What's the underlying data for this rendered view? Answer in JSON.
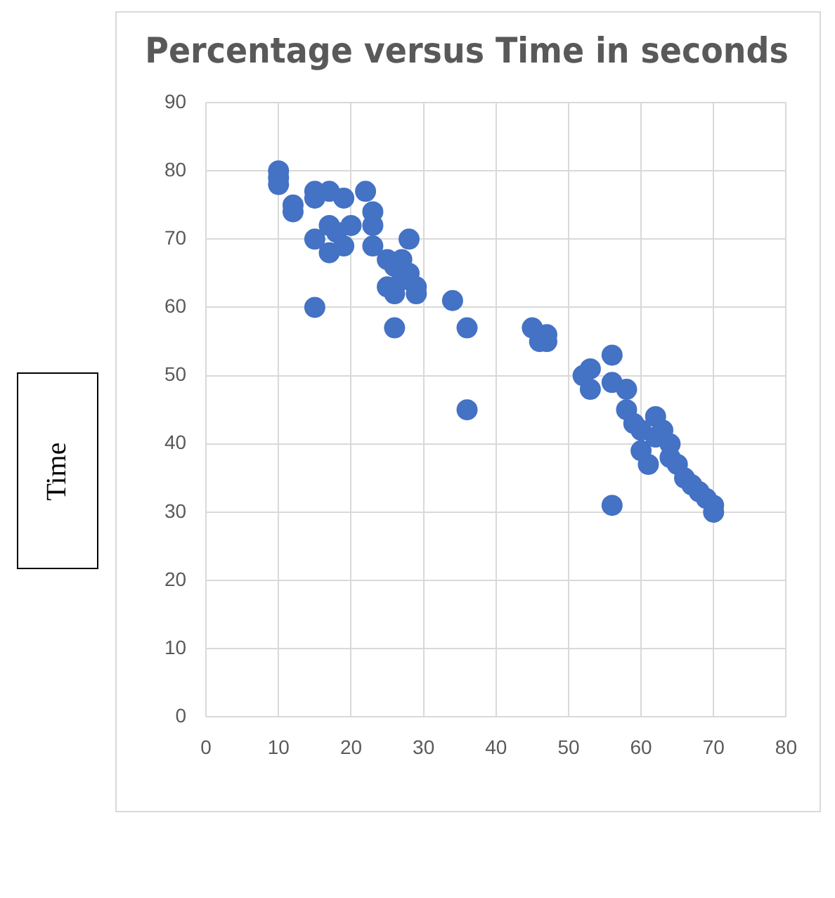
{
  "chart_data": {
    "type": "scatter",
    "title": "Percentage versus Time in seconds",
    "ylabel": "Time",
    "x": [
      10,
      10,
      10,
      12,
      12,
      15,
      15,
      17,
      19,
      22,
      15,
      17,
      17,
      18,
      19,
      20,
      23,
      23,
      23,
      25,
      26,
      25,
      26,
      27,
      27,
      28,
      28,
      29,
      29,
      15,
      26,
      34,
      36,
      36,
      45,
      46,
      47,
      47,
      52,
      53,
      53,
      56,
      56,
      58,
      58,
      59,
      60,
      60,
      61,
      62,
      62,
      63,
      64,
      64,
      65,
      66,
      67,
      68,
      69,
      70,
      70,
      56
    ],
    "values": [
      80,
      79,
      78,
      75,
      74,
      77,
      76,
      77,
      76,
      77,
      70,
      72,
      68,
      71,
      69,
      72,
      74,
      72,
      69,
      67,
      66,
      63,
      62,
      67,
      64,
      70,
      65,
      63,
      62,
      60,
      57,
      61,
      57,
      45,
      57,
      55,
      56,
      55,
      50,
      51,
      48,
      53,
      49,
      48,
      45,
      43,
      42,
      39,
      37,
      44,
      41,
      42,
      40,
      38,
      37,
      35,
      34,
      33,
      32,
      31,
      30,
      31
    ],
    "color": "#4472c4",
    "marker": "circle",
    "xlim": [
      0,
      80
    ],
    "xticks": [
      0,
      10,
      20,
      30,
      40,
      50,
      60,
      70,
      80
    ],
    "ylim": [
      0,
      90
    ],
    "yticks": [
      0,
      10,
      20,
      30,
      40,
      50,
      60,
      70,
      80,
      90
    ],
    "grid": true,
    "legend": false
  }
}
